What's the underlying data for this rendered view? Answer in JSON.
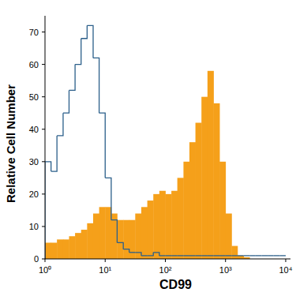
{
  "chart_data": {
    "type": "histogram",
    "x_label": "CD99",
    "y_label": "Relative Cell Number",
    "log": "x",
    "xlim": [
      1,
      12000
    ],
    "xticks": [
      {
        "value": 1,
        "label": "10⁰"
      },
      {
        "value": 10,
        "label": "10¹"
      },
      {
        "value": 100,
        "label": "10²"
      },
      {
        "value": 1000,
        "label": "10³"
      },
      {
        "value": 10000,
        "label": "10⁴"
      }
    ],
    "ylim": [
      0,
      75
    ],
    "yticks": [
      0,
      10,
      20,
      30,
      40,
      50,
      60,
      70
    ],
    "bins": [
      1,
      1.26,
      1.58,
      2.0,
      2.51,
      3.16,
      3.98,
      5.01,
      6.31,
      7.94,
      10,
      12.6,
      15.8,
      20.0,
      25.1,
      31.6,
      39.8,
      50.1,
      63.1,
      79.4,
      100,
      126,
      158,
      200,
      251,
      316,
      398,
      501,
      631,
      794,
      1000,
      1260,
      1580,
      2000,
      2510,
      3160,
      3980,
      5010,
      6310,
      7940,
      10000
    ],
    "series": [
      {
        "type": "bar",
        "color": "#f5a01a",
        "values": [
          5,
          5,
          6,
          6,
          7,
          8,
          9,
          11,
          14,
          16,
          16,
          14,
          12,
          12,
          12,
          14,
          16,
          18,
          20,
          21,
          20,
          21,
          25,
          30,
          36,
          42,
          50,
          58,
          48,
          30,
          14,
          4,
          1,
          0.5,
          0,
          0,
          0,
          0,
          0,
          0
        ]
      },
      {
        "type": "step",
        "color": "#2b5f8a",
        "values": [
          30,
          27,
          38,
          45,
          52,
          60,
          68,
          72,
          62,
          45,
          25,
          12,
          5,
          3,
          2,
          2,
          1,
          1,
          2,
          1,
          1,
          1,
          1,
          1,
          1,
          1,
          1,
          1,
          1,
          1,
          1,
          1,
          1,
          1,
          1,
          1,
          1,
          1,
          1,
          1
        ]
      }
    ]
  }
}
